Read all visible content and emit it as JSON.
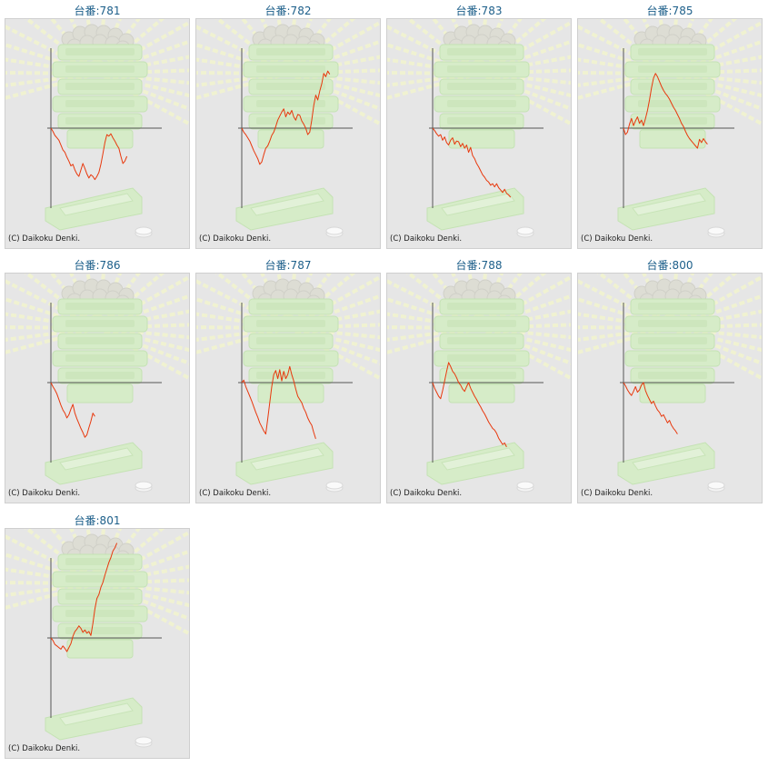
{
  "copyright_text": "(C) Daikoku Denki.",
  "colors": {
    "title": "#1d5f8a",
    "line": "#e8380d",
    "axis": "#555555",
    "panel_bg": "#e6e6e6"
  },
  "chart_data": [
    {
      "type": "line",
      "title": "台番:781",
      "y": [
        0,
        -4,
        -9,
        -12,
        -15,
        -21,
        -27,
        -30,
        -36,
        -41,
        -47,
        -45,
        -52,
        -57,
        -60,
        -52,
        -44,
        -50,
        -57,
        -62,
        -58,
        -60,
        -64,
        -60,
        -55,
        -45,
        -32,
        -18,
        -8,
        -10,
        -7,
        -12,
        -16,
        -21,
        -25,
        -35,
        -44,
        -41,
        -35
      ]
    },
    {
      "type": "line",
      "title": "台番:782",
      "y": [
        0,
        -5,
        -8,
        -12,
        -16,
        -22,
        -28,
        -33,
        -38,
        -45,
        -42,
        -33,
        -25,
        -22,
        -16,
        -9,
        -5,
        2,
        10,
        15,
        20,
        24,
        14,
        20,
        17,
        22,
        14,
        10,
        17,
        16,
        9,
        5,
        0,
        -8,
        -5,
        10,
        28,
        41,
        35,
        46,
        55,
        68,
        64,
        71,
        67
      ]
    },
    {
      "type": "line",
      "title": "台番:783",
      "y": [
        0,
        -3,
        -7,
        -10,
        -8,
        -15,
        -11,
        -18,
        -21,
        -15,
        -12,
        -20,
        -16,
        -17,
        -23,
        -19,
        -25,
        -21,
        -30,
        -24,
        -34,
        -38,
        -44,
        -48,
        -53,
        -58,
        -61,
        -65,
        -67,
        -71,
        -69,
        -73,
        -69,
        -74,
        -77,
        -80,
        -76,
        -81,
        -83,
        -86
      ]
    },
    {
      "type": "line",
      "title": "台番:785",
      "y": [
        0,
        -8,
        -5,
        5,
        12,
        3,
        9,
        14,
        6,
        10,
        3,
        12,
        22,
        35,
        50,
        62,
        68,
        64,
        58,
        52,
        47,
        43,
        40,
        36,
        31,
        26,
        22,
        17,
        12,
        6,
        2,
        -4,
        -9,
        -13,
        -16,
        -19,
        -22,
        -25,
        -14,
        -18,
        -13,
        -17,
        -20
      ]
    },
    {
      "type": "line",
      "title": "台番:786",
      "y": [
        0,
        -5,
        -9,
        -14,
        -21,
        -28,
        -34,
        -38,
        -44,
        -40,
        -33,
        -27,
        -38,
        -45,
        -51,
        -57,
        -62,
        -68,
        -65,
        -56,
        -48,
        -38,
        -42
      ]
    },
    {
      "type": "line",
      "title": "台番:787",
      "y": [
        0,
        3,
        -5,
        -11,
        -17,
        -23,
        -30,
        -37,
        -43,
        -50,
        -55,
        -60,
        -64,
        -45,
        -25,
        -5,
        10,
        15,
        5,
        16,
        2,
        14,
        5,
        10,
        20,
        10,
        2,
        -8,
        -17,
        -21,
        -25,
        -32,
        -37,
        -44,
        -49,
        -53,
        -62,
        -70
      ]
    },
    {
      "type": "line",
      "title": "台番:788",
      "y": [
        0,
        -7,
        -12,
        -17,
        -20,
        -10,
        2,
        14,
        25,
        20,
        14,
        11,
        6,
        0,
        -3,
        -8,
        -11,
        -5,
        0,
        -7,
        -12,
        -17,
        -21,
        -26,
        -30,
        -35,
        -39,
        -44,
        -49,
        -53,
        -57,
        -59,
        -63,
        -69,
        -73,
        -77,
        -75,
        -80
      ]
    },
    {
      "type": "line",
      "title": "台番:800",
      "y": [
        0,
        -4,
        -9,
        -13,
        -16,
        -11,
        -5,
        -12,
        -9,
        -3,
        0,
        -10,
        -16,
        -21,
        -26,
        -23,
        -29,
        -34,
        -37,
        -42,
        -40,
        -45,
        -50,
        -47,
        -53,
        -57,
        -60,
        -64
      ]
    },
    {
      "type": "line",
      "title": "台番:801",
      "y": [
        0,
        -3,
        -8,
        -10,
        -12,
        -14,
        -10,
        -13,
        -17,
        -12,
        -7,
        2,
        8,
        11,
        15,
        12,
        7,
        10,
        6,
        8,
        3,
        18,
        36,
        49,
        54,
        63,
        69,
        78,
        86,
        94,
        100,
        108,
        112,
        118
      ]
    }
  ]
}
